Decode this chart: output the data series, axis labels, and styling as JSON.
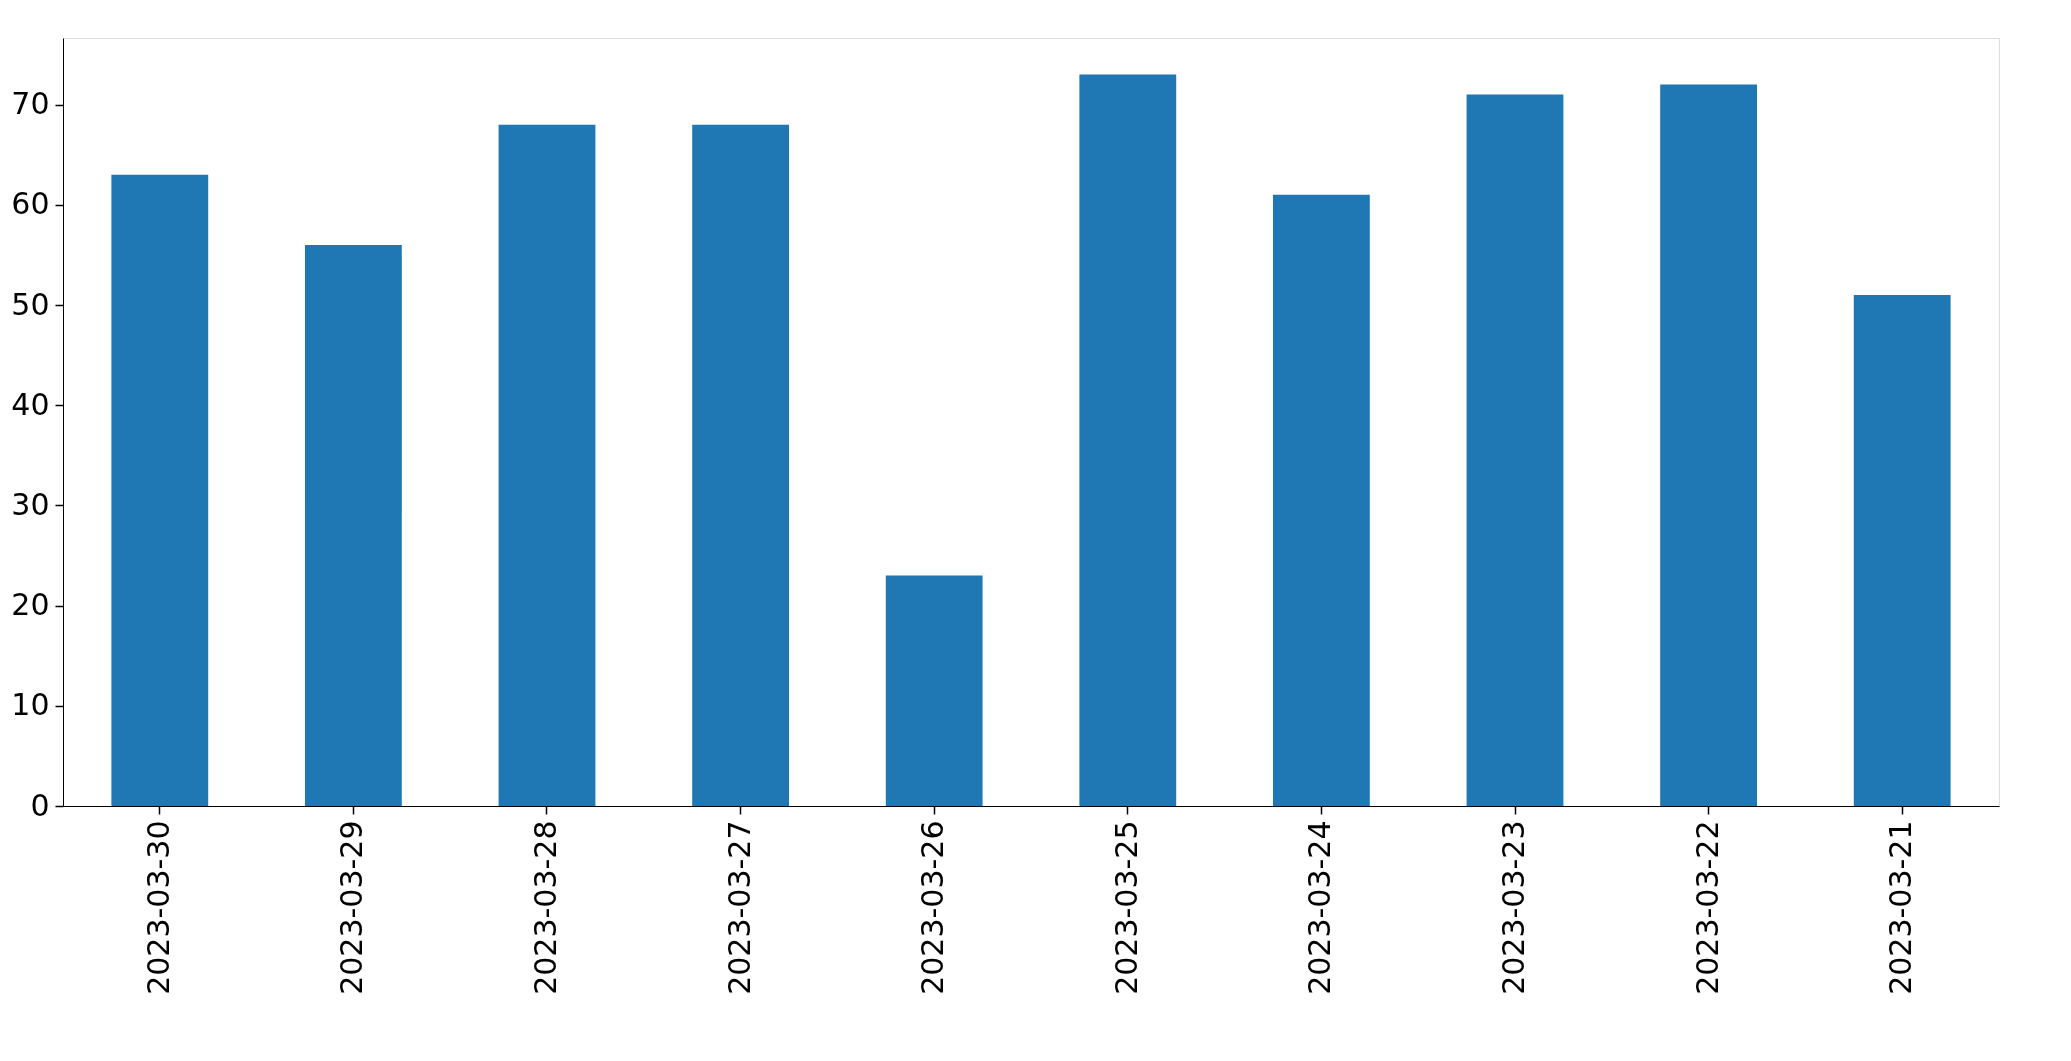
{
  "chart_data": {
    "type": "bar",
    "categories": [
      "2023-03-30",
      "2023-03-29",
      "2023-03-28",
      "2023-03-27",
      "2023-03-26",
      "2023-03-25",
      "2023-03-24",
      "2023-03-23",
      "2023-03-22",
      "2023-03-21"
    ],
    "values": [
      63,
      56,
      68,
      68,
      23,
      73,
      61,
      71,
      72,
      51
    ],
    "color": "#1f77b4",
    "ylim": [
      0,
      76.65
    ],
    "yticks": [
      0,
      10,
      20,
      30,
      40,
      50,
      60,
      70
    ],
    "grid": false
  }
}
